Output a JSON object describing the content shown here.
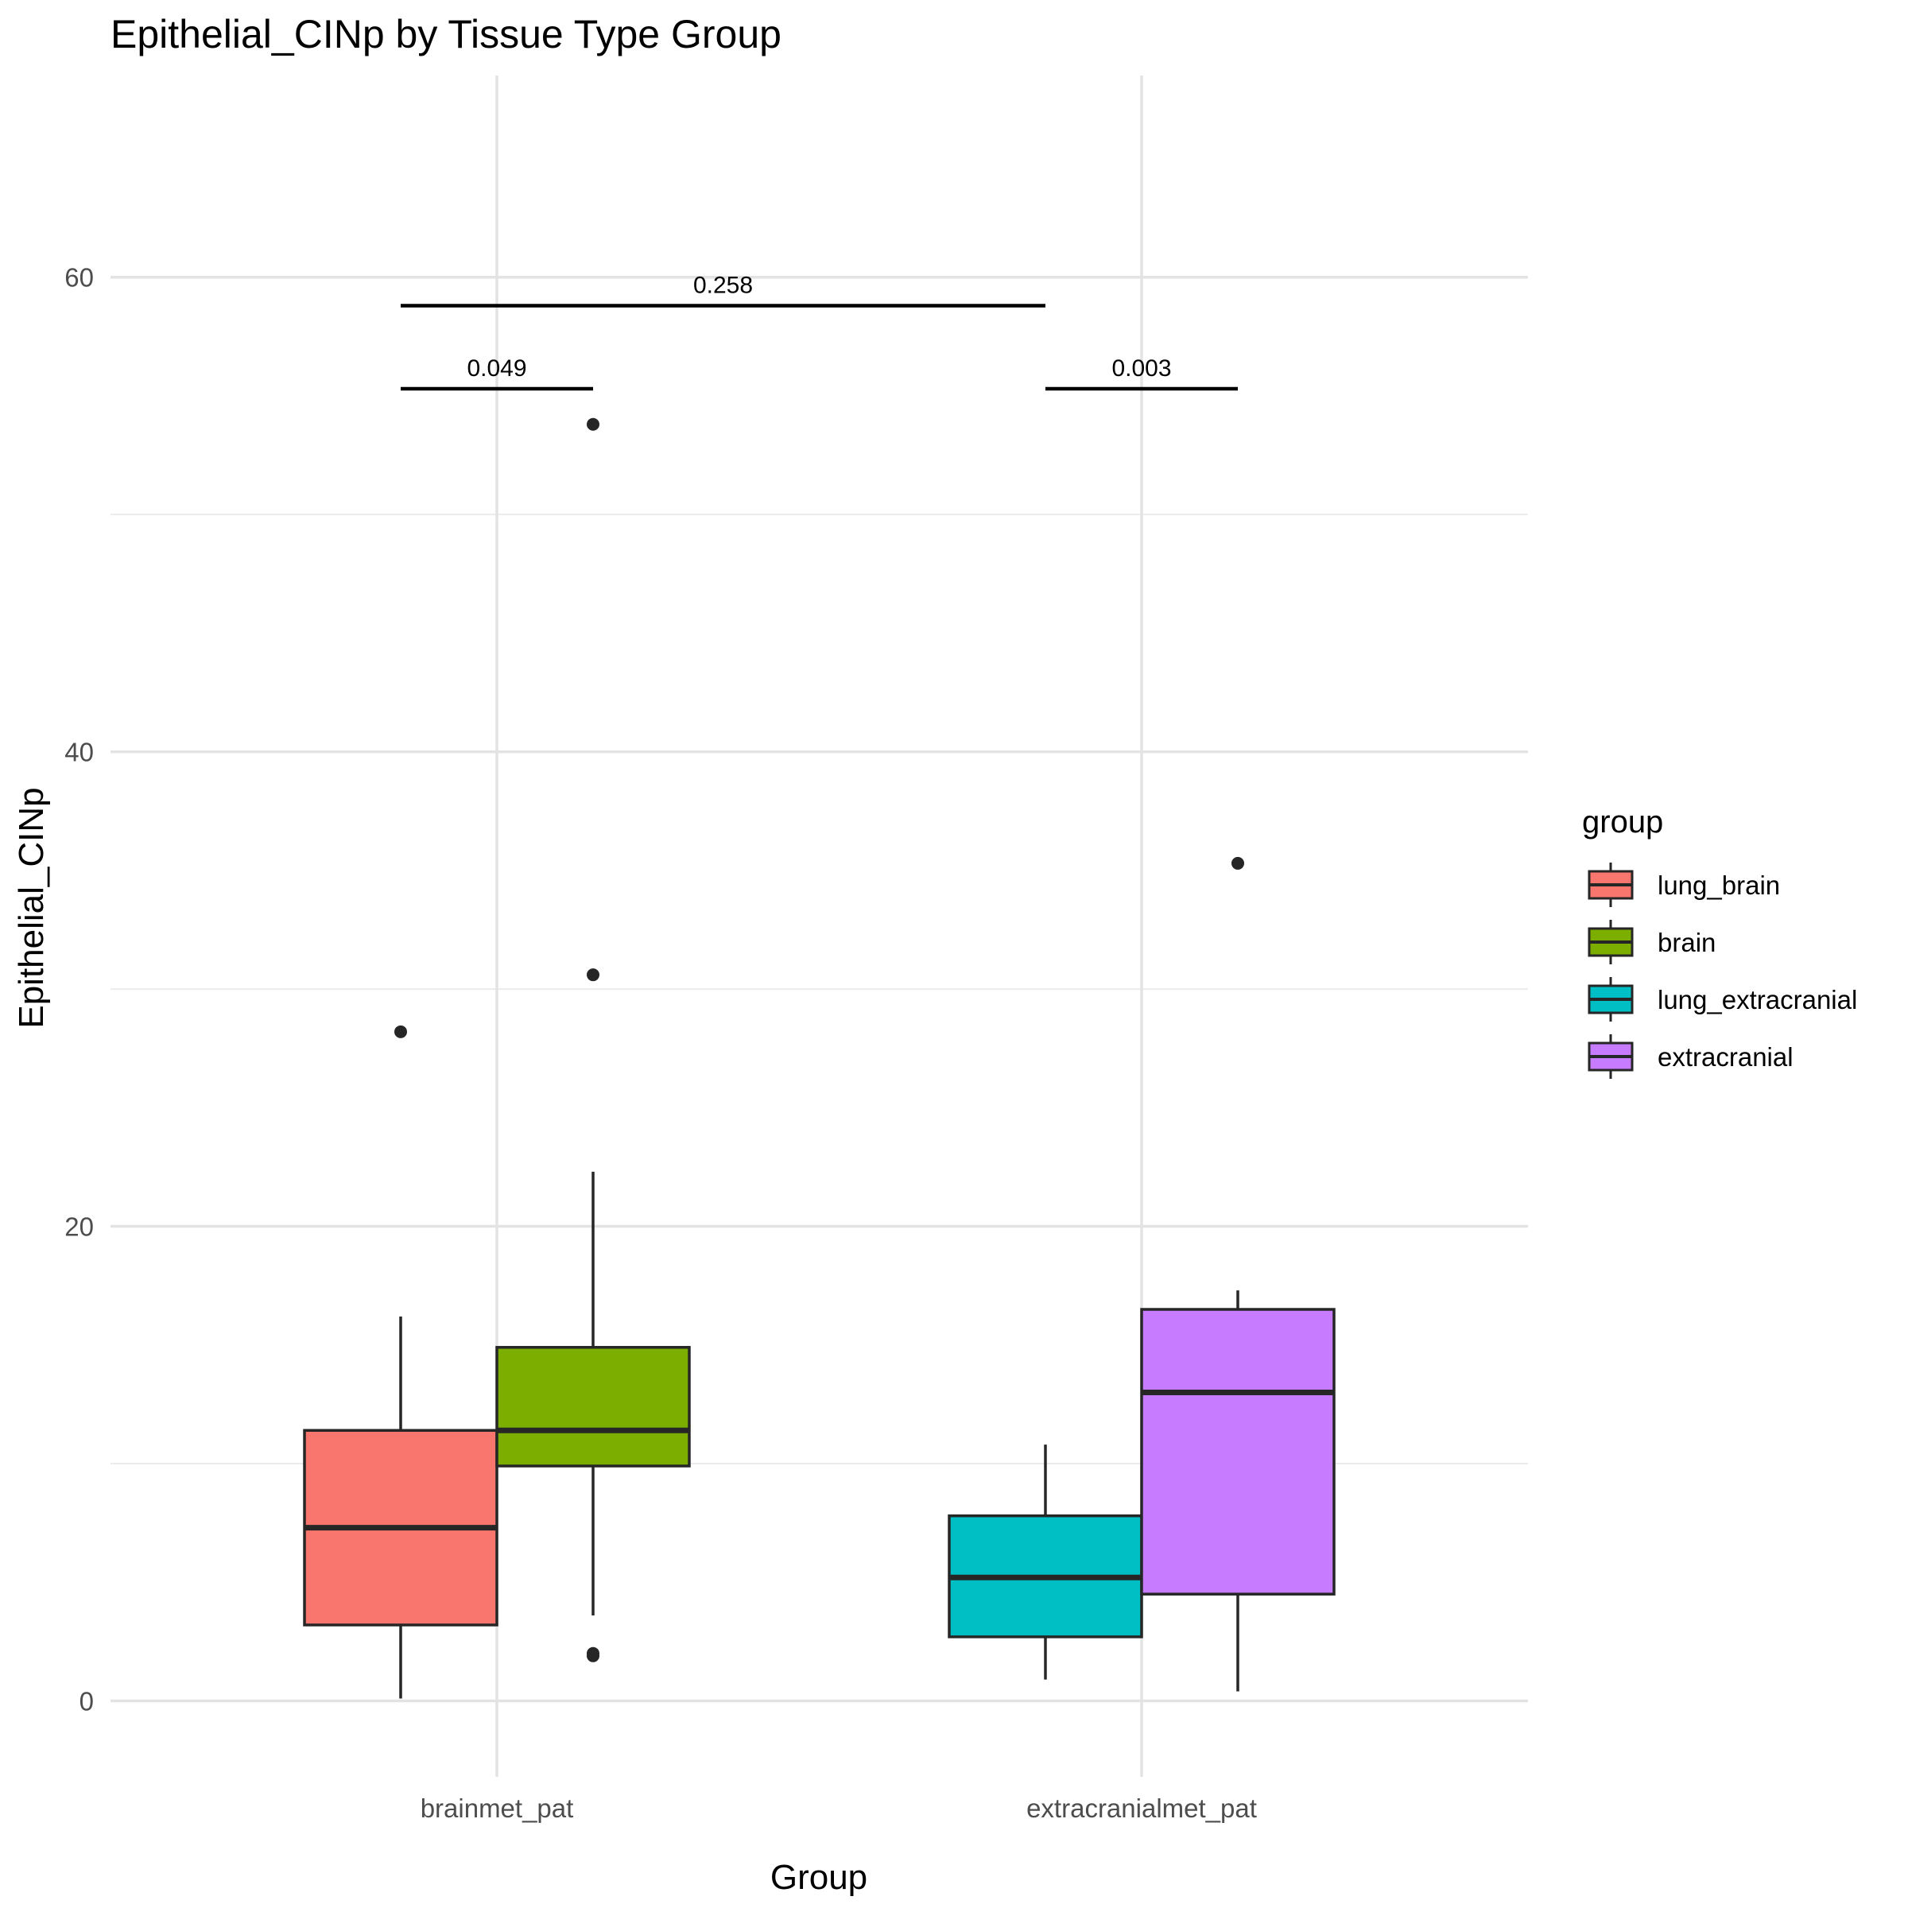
{
  "chart_data": {
    "type": "box",
    "title": "Epithelial_CINp by Tissue Type Group",
    "xlabel": "Group",
    "ylabel": "Epithelial_CINp",
    "categories": [
      "brainmet_pat",
      "extracranialmet_pat"
    ],
    "ylim": [
      -3.2,
      68.5
    ],
    "yticks": [
      0,
      20,
      40,
      60
    ],
    "grid": true,
    "legend": {
      "title": "group",
      "position": "right",
      "items": [
        {
          "label": "lung_brain",
          "color": "#F8766D"
        },
        {
          "label": "brain",
          "color": "#7CAE00"
        },
        {
          "label": "lung_extracranial",
          "color": "#00BFC4"
        },
        {
          "label": "extracranial",
          "color": "#C77CFF"
        }
      ]
    },
    "series": [
      {
        "group": "lung_brain",
        "category": "brainmet_pat",
        "offset": -1,
        "color": "#F8766D",
        "whisker_low": 0.1,
        "q1": 3.2,
        "median": 7.3,
        "q3": 11.4,
        "whisker_high": 16.2,
        "outliers": [
          28.2
        ]
      },
      {
        "group": "brain",
        "category": "brainmet_pat",
        "offset": 1,
        "color": "#7CAE00",
        "whisker_low": 3.6,
        "q1": 9.9,
        "median": 11.4,
        "q3": 14.9,
        "whisker_high": 22.3,
        "outliers": [
          30.6,
          53.8,
          2.0,
          1.9
        ]
      },
      {
        "group": "lung_extracranial",
        "category": "extracranialmet_pat",
        "offset": -1,
        "color": "#00BFC4",
        "whisker_low": 0.9,
        "q1": 2.7,
        "median": 5.2,
        "q3": 7.8,
        "whisker_high": 10.8,
        "outliers": []
      },
      {
        "group": "extracranial",
        "category": "extracranialmet_pat",
        "offset": 1,
        "color": "#C77CFF",
        "whisker_low": 0.4,
        "q1": 4.5,
        "median": 13.0,
        "q3": 16.5,
        "whisker_high": 17.3,
        "outliers": [
          35.3
        ]
      }
    ],
    "annotations": [
      {
        "label": "0.049",
        "from": "lung_brain",
        "to": "brain",
        "y": 55.3
      },
      {
        "label": "0.003",
        "from": "lung_extracranial",
        "to": "extracranial",
        "y": 55.3
      },
      {
        "label": "0.258",
        "from": "lung_brain",
        "to": "lung_extracranial",
        "y": 58.8
      }
    ]
  }
}
